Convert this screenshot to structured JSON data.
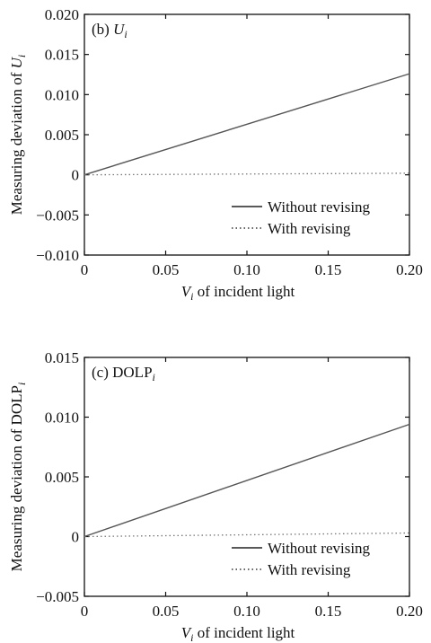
{
  "chart_data": [
    {
      "type": "line",
      "panel_label": "(b)",
      "panel_symbol": "U",
      "panel_sub": "i",
      "ylabel_main": "Measuring deviation of",
      "ylabel_var": "U",
      "ylabel_sub": "i",
      "xlabel_var": "V",
      "xlabel_sub": "i",
      "xlabel_rest": "of incident light",
      "xlim": [
        0,
        0.2
      ],
      "ylim": [
        -0.01,
        0.02
      ],
      "x_ticks": [
        0,
        0.05,
        0.1,
        0.15,
        0.2
      ],
      "x_tick_labels": [
        "0",
        "0.05",
        "0.10",
        "0.15",
        "0.20"
      ],
      "y_ticks": [
        -0.01,
        -0.005,
        0,
        0.005,
        0.01,
        0.015,
        0.02
      ],
      "y_tick_labels": [
        "−0.010",
        "−0.005",
        "0",
        "0.005",
        "0.010",
        "0.015",
        "0.020"
      ],
      "legend_position": "lower-right",
      "series": [
        {
          "name": "Without revising",
          "style": "solid",
          "x": [
            0,
            0.2
          ],
          "y": [
            0,
            0.0126
          ]
        },
        {
          "name": "With revising",
          "style": "dotted",
          "x": [
            0,
            0.2
          ],
          "y": [
            0,
            0.0002
          ]
        }
      ]
    },
    {
      "type": "line",
      "panel_label": "(c)",
      "panel_symbol": "DOLP",
      "panel_sub": "i",
      "ylabel_main": "Measuring deviation of",
      "ylabel_var": "DOLP",
      "ylabel_sub": "i",
      "xlabel_var": "V",
      "xlabel_sub": "i",
      "xlabel_rest": "of incident light",
      "xlim": [
        0,
        0.2
      ],
      "ylim": [
        -0.005,
        0.015
      ],
      "x_ticks": [
        0,
        0.05,
        0.1,
        0.15,
        0.2
      ],
      "x_tick_labels": [
        "0",
        "0.05",
        "0.10",
        "0.15",
        "0.20"
      ],
      "y_ticks": [
        -0.005,
        0,
        0.005,
        0.01,
        0.015
      ],
      "y_tick_labels": [
        "−0.005",
        "0",
        "0.005",
        "0.010",
        "0.015"
      ],
      "legend_position": "lower-right",
      "series": [
        {
          "name": "Without revising",
          "style": "solid",
          "x": [
            0,
            0.2
          ],
          "y": [
            0,
            0.0094
          ]
        },
        {
          "name": "With revising",
          "style": "dotted",
          "x": [
            0,
            0.2
          ],
          "y": [
            0,
            0.0003
          ]
        }
      ]
    }
  ]
}
